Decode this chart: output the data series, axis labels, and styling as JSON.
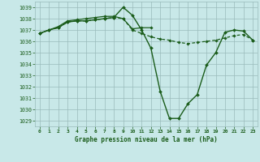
{
  "title": "Graphe pression niveau de la mer (hPa)",
  "bg_color": "#c8e8e8",
  "grid_color": "#99bbbb",
  "line_color": "#1a5c1a",
  "ylim": [
    1028.5,
    1039.5
  ],
  "xlim": [
    -0.5,
    23.5
  ],
  "yticks": [
    1029,
    1030,
    1031,
    1032,
    1033,
    1034,
    1035,
    1036,
    1037,
    1038,
    1039
  ],
  "xticks": [
    0,
    1,
    2,
    3,
    4,
    5,
    6,
    7,
    8,
    9,
    10,
    11,
    12,
    13,
    14,
    15,
    16,
    17,
    18,
    19,
    20,
    21,
    22,
    23
  ],
  "series": [
    {
      "x": [
        0,
        1,
        2,
        3,
        4,
        5,
        6,
        7,
        8,
        9,
        10,
        11,
        12,
        13,
        14,
        15,
        16,
        17,
        18,
        19,
        20,
        21,
        22,
        23
      ],
      "y": [
        1036.7,
        1037.0,
        1037.2,
        1037.7,
        1037.8,
        1037.8,
        1037.9,
        1038.0,
        1038.1,
        1039.0,
        1038.3,
        1037.0,
        1035.4,
        1031.6,
        1029.2,
        1029.2,
        1030.5,
        1031.3,
        1033.9,
        1035.0,
        1036.8,
        1037.0,
        1036.9,
        1036.1
      ],
      "lw": 1.0,
      "ms": 2.0,
      "dashes": []
    },
    {
      "x": [
        0,
        1,
        2,
        3,
        4,
        5,
        6,
        7,
        8,
        9,
        10,
        11,
        12,
        13,
        14,
        15,
        16,
        17,
        18,
        19,
        20,
        21,
        22,
        23
      ],
      "y": [
        1036.7,
        1037.0,
        1037.2,
        1037.7,
        1037.8,
        1037.8,
        1037.9,
        1038.0,
        1038.1,
        1038.0,
        1037.0,
        1036.7,
        1036.4,
        1036.2,
        1036.1,
        1035.9,
        1035.8,
        1035.9,
        1036.0,
        1036.1,
        1036.3,
        1036.5,
        1036.6,
        1036.1
      ],
      "lw": 0.9,
      "ms": 1.8,
      "dashes": [
        3,
        2
      ]
    },
    {
      "x": [
        0,
        1,
        2,
        3,
        4,
        5,
        6,
        7,
        8,
        9,
        10,
        11,
        12
      ],
      "y": [
        1036.7,
        1037.0,
        1037.3,
        1037.8,
        1037.9,
        1038.0,
        1038.1,
        1038.2,
        1038.2,
        1038.0,
        1037.1,
        1037.2,
        1037.2
      ],
      "lw": 0.9,
      "ms": 1.8,
      "dashes": []
    }
  ]
}
